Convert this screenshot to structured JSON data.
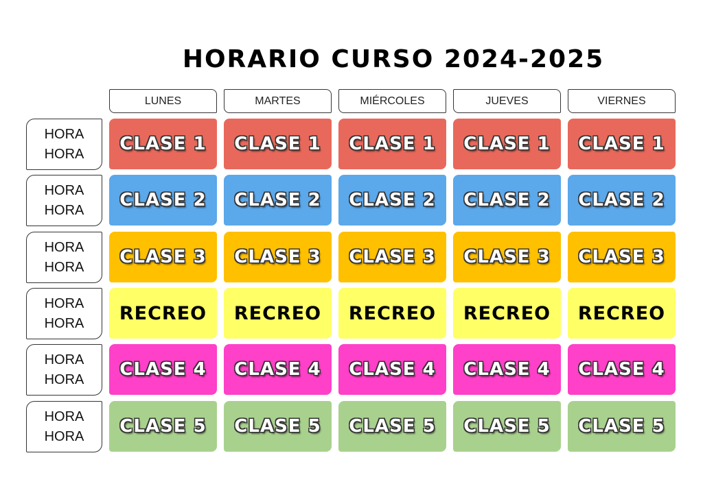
{
  "title": "HORARIO CURSO 2024-2025",
  "days": [
    "LUNES",
    "MARTES",
    "MIÉRCOLES",
    "JUEVES",
    "VIERNES"
  ],
  "rows": [
    {
      "hora": [
        "HORA",
        "HORA"
      ],
      "label": "CLASE 1",
      "color": "#E8695B",
      "dark": false
    },
    {
      "hora": [
        "HORA",
        "HORA"
      ],
      "label": "CLASE 2",
      "color": "#5BA8EB",
      "dark": false
    },
    {
      "hora": [
        "HORA",
        "HORA"
      ],
      "label": "CLASE 3",
      "color": "#FFC000",
      "dark": false
    },
    {
      "hora": [
        "HORA",
        "HORA"
      ],
      "label": "RECREO",
      "color": "#FFFF66",
      "dark": true
    },
    {
      "hora": [
        "HORA",
        "HORA"
      ],
      "label": "CLASE 4",
      "color": "#FF40C8",
      "dark": false
    },
    {
      "hora": [
        "HORA",
        "HORA"
      ],
      "label": "CLASE 5",
      "color": "#A9D18E",
      "dark": false
    }
  ]
}
